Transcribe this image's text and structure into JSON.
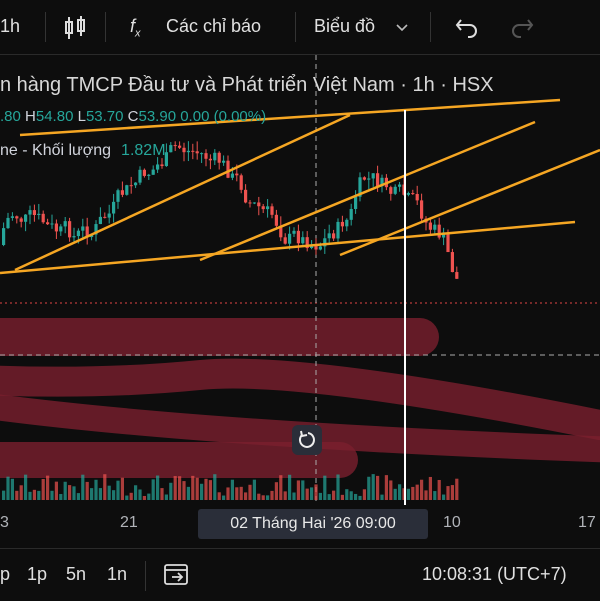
{
  "toolbar": {
    "interval": "1h",
    "indicators": "Các chỉ báo",
    "chart_type": "Biểu đồ"
  },
  "header": {
    "title": "n hàng TMCP Đầu tư và Phát triển Việt Nam · 1h · HSX",
    "ohlc": {
      "open_value": ".80",
      "high_label": "H",
      "high_value": "54.80",
      "low_label": "L",
      "low_value": "53.70",
      "close_label": "C",
      "close_value": "53.90",
      "change": "0.00 (0.00%)"
    },
    "volume": {
      "label": "ne - Khối lượng",
      "value": "1.82M"
    }
  },
  "x_axis": {
    "labels": [
      "3",
      "21",
      "10",
      "17"
    ],
    "cursor": "02 Tháng Hai '26   09:00"
  },
  "bottom_bar": {
    "ranges": [
      "p",
      "1p",
      "5n",
      "1n"
    ],
    "clock": "10:08:31 (UTC+7)"
  }
}
